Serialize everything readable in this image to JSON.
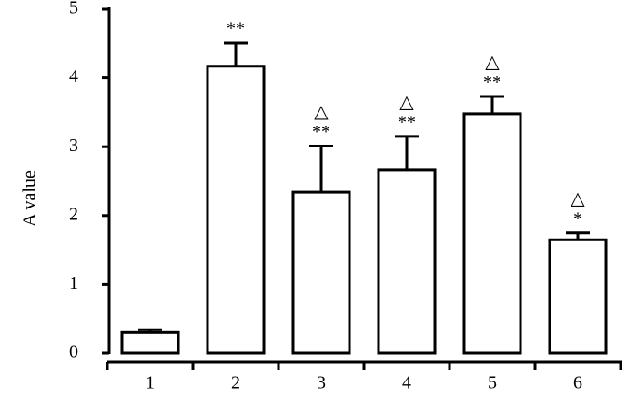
{
  "chart_data": {
    "type": "bar",
    "y_label": "A value",
    "categories": [
      "1",
      "2",
      "3",
      "4",
      "5",
      "6"
    ],
    "values": [
      0.3,
      4.17,
      2.34,
      2.66,
      3.48,
      1.65
    ],
    "errors": [
      0.04,
      0.34,
      0.67,
      0.49,
      0.25,
      0.1
    ],
    "annotations": [
      null,
      [
        "**"
      ],
      [
        "△",
        "**"
      ],
      [
        "△",
        "**"
      ],
      [
        "△",
        "**"
      ],
      [
        "△",
        "*"
      ]
    ],
    "color": "#ffffff",
    "edge_color": "#000000",
    "ylim": [
      0,
      5
    ],
    "yticks": [
      0,
      1,
      2,
      3,
      4,
      5
    ]
  }
}
